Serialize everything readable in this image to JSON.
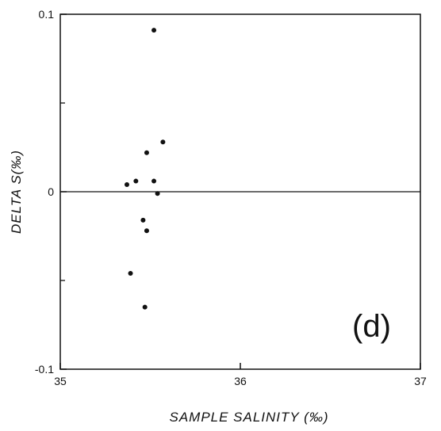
{
  "chart_data": {
    "type": "scatter",
    "xlabel": "SAMPLE SALINITY (‰)",
    "ylabel": "DELTA S(‰)",
    "panel_label": "(d)",
    "xlim": [
      35,
      37
    ],
    "ylim": [
      -0.1,
      0.1
    ],
    "x_ticks": [
      35,
      36,
      37
    ],
    "x_tick_labels": [
      "35",
      "36",
      "37"
    ],
    "y_ticks": [
      -0.1,
      0,
      0.1
    ],
    "y_tick_labels": [
      "-0.1",
      "0",
      "0.1"
    ],
    "y_minor_ticks": [
      -0.05,
      0.05
    ],
    "zero_line": 0,
    "grid": false,
    "series": [
      {
        "points": [
          {
            "x": 35.52,
            "y": 0.091
          },
          {
            "x": 35.57,
            "y": 0.028
          },
          {
            "x": 35.48,
            "y": 0.022
          },
          {
            "x": 35.52,
            "y": 0.006
          },
          {
            "x": 35.42,
            "y": 0.006
          },
          {
            "x": 35.37,
            "y": 0.004
          },
          {
            "x": 35.54,
            "y": -0.001
          },
          {
            "x": 35.46,
            "y": -0.016
          },
          {
            "x": 35.48,
            "y": -0.022
          },
          {
            "x": 35.39,
            "y": -0.046
          },
          {
            "x": 35.47,
            "y": -0.065
          }
        ]
      }
    ]
  }
}
